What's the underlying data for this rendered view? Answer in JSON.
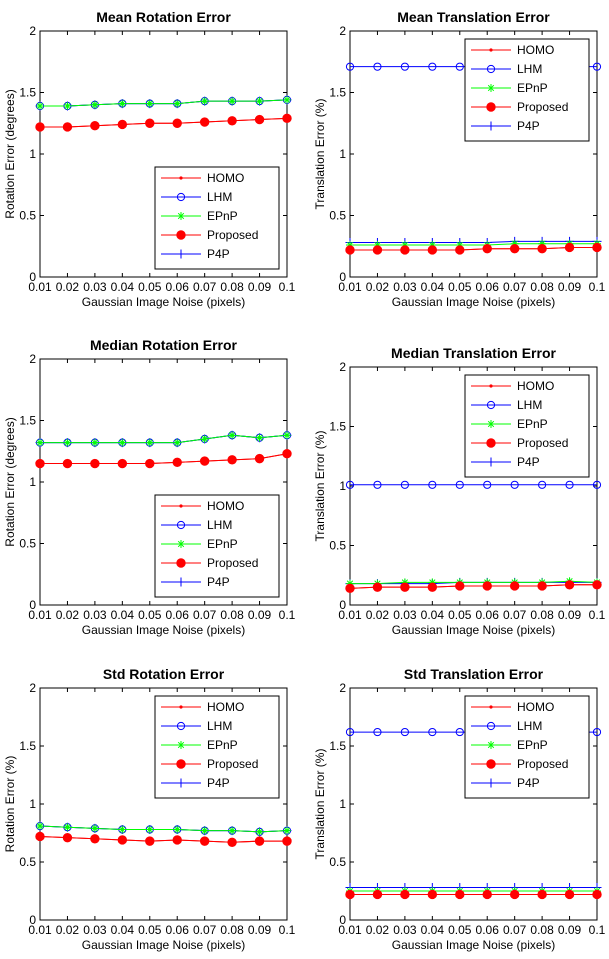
{
  "figure": {
    "series_styles": {
      "HOMO": {
        "color": "#ff0000",
        "marker": "dot"
      },
      "LHM": {
        "color": "#0000ff",
        "marker": "circle"
      },
      "EPnP": {
        "color": "#00ff00",
        "marker": "star"
      },
      "Proposed": {
        "color": "#ff0000",
        "marker": "filled-circle"
      },
      "P4P": {
        "color": "#0000ff",
        "marker": "plus"
      }
    }
  },
  "chart_data": [
    {
      "type": "line",
      "title": "Mean Rotation Error",
      "xlabel": "Gaussian Image Noise (pixels)",
      "ylabel": "Rotation Error (degrees)",
      "x": [
        0.01,
        0.02,
        0.03,
        0.04,
        0.05,
        0.06,
        0.07,
        0.08,
        0.09,
        0.1
      ],
      "x_tick_labels": [
        "0.01",
        "0.02",
        "0.03",
        "0.04",
        "0.05",
        "0.06",
        "0.07",
        "0.08",
        "0.09",
        "0.1"
      ],
      "y_tick_labels": [
        "0",
        "0.5",
        "1",
        "1.5",
        "2"
      ],
      "xlim": [
        0.01,
        0.1
      ],
      "ylim": [
        0,
        2
      ],
      "legend_position": "bottom-right",
      "series": [
        {
          "name": "HOMO",
          "values": [
            1.22,
            1.22,
            1.23,
            1.24,
            1.25,
            1.25,
            1.26,
            1.27,
            1.28,
            1.29
          ]
        },
        {
          "name": "LHM",
          "values": [
            1.39,
            1.39,
            1.4,
            1.41,
            1.41,
            1.41,
            1.43,
            1.43,
            1.43,
            1.44
          ]
        },
        {
          "name": "EPnP",
          "values": [
            1.39,
            1.39,
            1.4,
            1.41,
            1.41,
            1.41,
            1.43,
            1.43,
            1.43,
            1.44
          ]
        },
        {
          "name": "Proposed",
          "values": [
            1.22,
            1.22,
            1.23,
            1.24,
            1.25,
            1.25,
            1.26,
            1.27,
            1.28,
            1.29
          ]
        },
        {
          "name": "P4P",
          "values": [
            1.39,
            1.39,
            1.4,
            1.41,
            1.41,
            1.41,
            1.43,
            1.43,
            1.43,
            1.44
          ]
        }
      ]
    },
    {
      "type": "line",
      "title": "Mean Translation Error",
      "xlabel": "Gaussian Image Noise (pixels)",
      "ylabel": "Translation Error (%)",
      "x": [
        0.01,
        0.02,
        0.03,
        0.04,
        0.05,
        0.06,
        0.07,
        0.08,
        0.09,
        0.1
      ],
      "x_tick_labels": [
        "0.01",
        "0.02",
        "0.03",
        "0.04",
        "0.05",
        "0.06",
        "0.07",
        "0.08",
        "0.09",
        "0.1"
      ],
      "y_tick_labels": [
        "0",
        "0.5",
        "1",
        "1.5",
        "2"
      ],
      "xlim": [
        0.01,
        0.1
      ],
      "ylim": [
        0,
        2
      ],
      "legend_position": "top-right",
      "series": [
        {
          "name": "HOMO",
          "values": [
            0.22,
            0.22,
            0.22,
            0.22,
            0.22,
            0.23,
            0.23,
            0.23,
            0.24,
            0.24
          ]
        },
        {
          "name": "LHM",
          "values": [
            1.71,
            1.71,
            1.71,
            1.71,
            1.71,
            1.71,
            1.71,
            1.71,
            1.71,
            1.71
          ]
        },
        {
          "name": "EPnP",
          "values": [
            0.26,
            0.26,
            0.26,
            0.26,
            0.26,
            0.26,
            0.27,
            0.27,
            0.27,
            0.27
          ]
        },
        {
          "name": "Proposed",
          "values": [
            0.22,
            0.22,
            0.22,
            0.22,
            0.22,
            0.23,
            0.23,
            0.23,
            0.24,
            0.24
          ]
        },
        {
          "name": "P4P",
          "values": [
            0.28,
            0.28,
            0.28,
            0.28,
            0.28,
            0.28,
            0.29,
            0.29,
            0.29,
            0.29
          ]
        }
      ]
    },
    {
      "type": "line",
      "title": "Median Rotation Error",
      "xlabel": "Gaussian Image Noise (pixels)",
      "ylabel": "Rotation Error (degrees)",
      "x": [
        0.01,
        0.02,
        0.03,
        0.04,
        0.05,
        0.06,
        0.07,
        0.08,
        0.09,
        0.1
      ],
      "x_tick_labels": [
        "0.01",
        "0.02",
        "0.03",
        "0.04",
        "0.05",
        "0.06",
        "0.07",
        "0.08",
        "0.09",
        "0.1"
      ],
      "y_tick_labels": [
        "0",
        "0.5",
        "1",
        "1.5",
        "2"
      ],
      "xlim": [
        0.01,
        0.1
      ],
      "ylim": [
        0,
        2
      ],
      "legend_position": "bottom-right",
      "series": [
        {
          "name": "HOMO",
          "values": [
            1.15,
            1.15,
            1.15,
            1.15,
            1.15,
            1.16,
            1.17,
            1.18,
            1.19,
            1.23
          ]
        },
        {
          "name": "LHM",
          "values": [
            1.32,
            1.32,
            1.32,
            1.32,
            1.32,
            1.32,
            1.35,
            1.38,
            1.36,
            1.38
          ]
        },
        {
          "name": "EPnP",
          "values": [
            1.32,
            1.32,
            1.32,
            1.32,
            1.32,
            1.32,
            1.35,
            1.38,
            1.36,
            1.38
          ]
        },
        {
          "name": "Proposed",
          "values": [
            1.15,
            1.15,
            1.15,
            1.15,
            1.15,
            1.16,
            1.17,
            1.18,
            1.19,
            1.23
          ]
        },
        {
          "name": "P4P",
          "values": [
            1.32,
            1.32,
            1.32,
            1.32,
            1.32,
            1.32,
            1.35,
            1.38,
            1.36,
            1.38
          ]
        }
      ]
    },
    {
      "type": "line",
      "title": "Median Translation Error",
      "xlabel": "Gaussian Image Noise (pixels)",
      "ylabel": "Translation Error (%)",
      "x": [
        0.01,
        0.02,
        0.03,
        0.04,
        0.05,
        0.06,
        0.07,
        0.08,
        0.09,
        0.1
      ],
      "x_tick_labels": [
        "0.01",
        "0.02",
        "0.03",
        "0.04",
        "0.05",
        "0.06",
        "0.07",
        "0.08",
        "0.09",
        "0.1"
      ],
      "y_tick_labels": [
        "0",
        "0.5",
        "1",
        "1.5",
        "2"
      ],
      "xlim": [
        0.01,
        0.1
      ],
      "ylim": [
        0,
        2
      ],
      "legend_position": "top-right",
      "series": [
        {
          "name": "HOMO",
          "values": [
            0.14,
            0.15,
            0.15,
            0.15,
            0.16,
            0.16,
            0.16,
            0.16,
            0.17,
            0.17
          ]
        },
        {
          "name": "LHM",
          "values": [
            1.01,
            1.01,
            1.01,
            1.01,
            1.01,
            1.01,
            1.01,
            1.01,
            1.01,
            1.01
          ]
        },
        {
          "name": "EPnP",
          "values": [
            0.18,
            0.18,
            0.19,
            0.19,
            0.19,
            0.19,
            0.19,
            0.19,
            0.2,
            0.19
          ]
        },
        {
          "name": "Proposed",
          "values": [
            0.14,
            0.15,
            0.15,
            0.15,
            0.16,
            0.16,
            0.16,
            0.16,
            0.17,
            0.17
          ]
        },
        {
          "name": "P4P",
          "values": [
            0.18,
            0.18,
            0.18,
            0.18,
            0.19,
            0.19,
            0.19,
            0.19,
            0.19,
            0.19
          ]
        }
      ]
    },
    {
      "type": "line",
      "title": "Std Rotation Error",
      "xlabel": "Gaussian Image Noise (pixels)",
      "ylabel": "Rotation Error (%)",
      "x": [
        0.01,
        0.02,
        0.03,
        0.04,
        0.05,
        0.06,
        0.07,
        0.08,
        0.09,
        0.1
      ],
      "x_tick_labels": [
        "0.01",
        "0.02",
        "0.03",
        "0.04",
        "0.05",
        "0.06",
        "0.07",
        "0.08",
        "0.09",
        "0.1"
      ],
      "y_tick_labels": [
        "0",
        "0.5",
        "1",
        "1.5",
        "2"
      ],
      "xlim": [
        0.01,
        0.1
      ],
      "ylim": [
        0,
        2
      ],
      "legend_position": "top-right",
      "series": [
        {
          "name": "HOMO",
          "values": [
            0.72,
            0.71,
            0.7,
            0.69,
            0.68,
            0.69,
            0.68,
            0.67,
            0.68,
            0.68
          ]
        },
        {
          "name": "LHM",
          "values": [
            0.81,
            0.8,
            0.79,
            0.78,
            0.78,
            0.78,
            0.77,
            0.77,
            0.76,
            0.77
          ]
        },
        {
          "name": "EPnP",
          "values": [
            0.81,
            0.8,
            0.79,
            0.78,
            0.78,
            0.78,
            0.77,
            0.77,
            0.76,
            0.77
          ]
        },
        {
          "name": "Proposed",
          "values": [
            0.72,
            0.71,
            0.7,
            0.69,
            0.68,
            0.69,
            0.68,
            0.67,
            0.68,
            0.68
          ]
        },
        {
          "name": "P4P",
          "values": [
            0.81,
            0.8,
            0.79,
            0.78,
            0.78,
            0.78,
            0.77,
            0.77,
            0.76,
            0.77
          ]
        }
      ]
    },
    {
      "type": "line",
      "title": "Std Translation Error",
      "xlabel": "Gaussian Image Noise (pixels)",
      "ylabel": "Translation Error (%)",
      "x": [
        0.01,
        0.02,
        0.03,
        0.04,
        0.05,
        0.06,
        0.07,
        0.08,
        0.09,
        0.1
      ],
      "x_tick_labels": [
        "0.01",
        "0.02",
        "0.03",
        "0.04",
        "0.05",
        "0.06",
        "0.07",
        "0.08",
        "0.09",
        "0.1"
      ],
      "y_tick_labels": [
        "0",
        "0.5",
        "1",
        "1.5",
        "2"
      ],
      "xlim": [
        0.01,
        0.1
      ],
      "ylim": [
        0,
        2
      ],
      "legend_position": "top-right",
      "series": [
        {
          "name": "HOMO",
          "values": [
            0.22,
            0.22,
            0.22,
            0.22,
            0.22,
            0.22,
            0.22,
            0.22,
            0.22,
            0.22
          ]
        },
        {
          "name": "LHM",
          "values": [
            1.62,
            1.62,
            1.62,
            1.62,
            1.62,
            1.62,
            1.62,
            1.62,
            1.62,
            1.62
          ]
        },
        {
          "name": "EPnP",
          "values": [
            0.25,
            0.25,
            0.25,
            0.25,
            0.25,
            0.25,
            0.25,
            0.25,
            0.25,
            0.25
          ]
        },
        {
          "name": "Proposed",
          "values": [
            0.22,
            0.22,
            0.22,
            0.22,
            0.22,
            0.22,
            0.22,
            0.22,
            0.22,
            0.22
          ]
        },
        {
          "name": "P4P",
          "values": [
            0.28,
            0.28,
            0.28,
            0.28,
            0.28,
            0.28,
            0.28,
            0.28,
            0.28,
            0.28
          ]
        }
      ]
    }
  ]
}
